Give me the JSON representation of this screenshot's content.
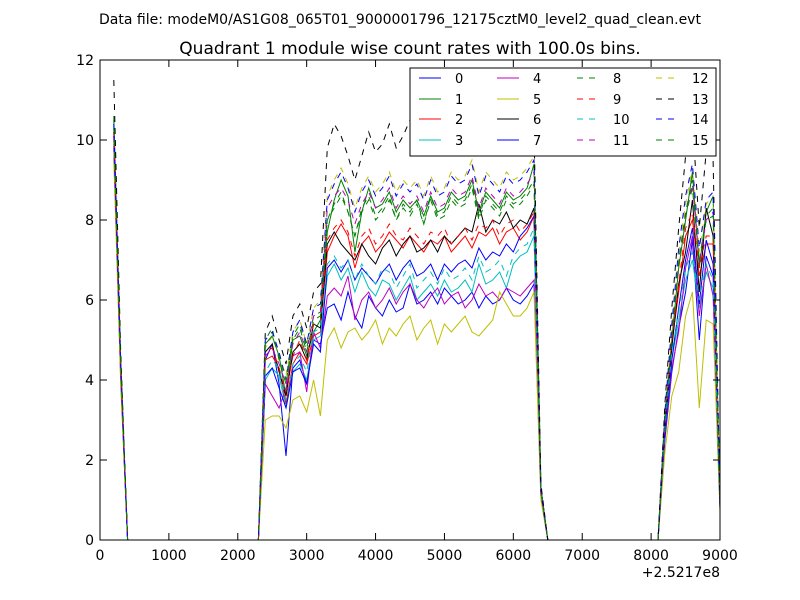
{
  "suptitle": "Data file: modeM0/AS1G08_065T01_9000001796_12175cztM0_level2_quad_clean.evt",
  "chart_data": {
    "type": "line",
    "title": "Quadrant 1 module wise count rates with 100.0s bins.",
    "xlabel": "",
    "ylabel": "",
    "x_offset_label": "+2.5217e8",
    "xlim": [
      0,
      9000
    ],
    "ylim": [
      0,
      12
    ],
    "xticks": [
      0,
      1000,
      2000,
      3000,
      4000,
      5000,
      6000,
      7000,
      8000,
      9000
    ],
    "yticks": [
      0,
      2,
      4,
      6,
      8,
      10,
      12
    ],
    "grid": false,
    "legend": {
      "position": "top-right",
      "columns": 4
    },
    "segments": [
      {
        "name": "start",
        "x_start": 200,
        "step": 100,
        "count": 3
      },
      {
        "name": "block1",
        "x_start": 2300,
        "step": 100,
        "count": 43
      },
      {
        "name": "block2",
        "x_start": 8100,
        "step": 100,
        "count": 10
      }
    ],
    "series": [
      {
        "name": "0",
        "color": "#0000ff",
        "dash": false,
        "start": [
          9.8,
          4.1,
          0.0
        ],
        "block1": [
          0.0,
          4.5,
          4.9,
          3.9,
          2.1,
          4.3,
          4.5,
          3.9,
          5.0,
          4.9,
          5.8,
          5.9,
          5.5,
          6.2,
          5.6,
          5.3,
          6.1,
          5.8,
          5.6,
          6.0,
          5.7,
          5.8,
          6.4,
          5.9,
          6.0,
          6.2,
          5.9,
          6.3,
          6.1,
          5.9,
          6.0,
          6.2,
          5.8,
          6.1,
          5.9,
          6.0,
          6.3,
          6.0,
          5.9,
          6.1,
          6.4,
          1.2,
          0.0
        ],
        "block2": [
          0.0,
          2.5,
          4.2,
          5.3,
          6.2,
          7.5,
          5.0,
          7.1,
          6.6,
          0.8
        ]
      },
      {
        "name": "1",
        "color": "#008000",
        "dash": false,
        "start": [
          10.6,
          4.5,
          0.0
        ],
        "block1": [
          0.0,
          4.9,
          5.1,
          4.6,
          3.6,
          5.0,
          5.1,
          4.6,
          5.2,
          5.5,
          7.7,
          8.5,
          9.0,
          8.6,
          7.2,
          8.2,
          8.8,
          8.3,
          8.4,
          8.7,
          8.2,
          8.5,
          8.3,
          8.5,
          8.1,
          8.6,
          8.2,
          8.3,
          8.7,
          8.5,
          8.6,
          9.0,
          8.2,
          8.7,
          8.5,
          8.3,
          8.7,
          8.5,
          8.6,
          8.8,
          9.4,
          1.3,
          0.0
        ],
        "block2": [
          0.0,
          3.0,
          5.0,
          6.8,
          8.0,
          9.2,
          6.8,
          8.2,
          8.6,
          0.9
        ]
      },
      {
        "name": "2",
        "color": "#ff0000",
        "dash": false,
        "start": [
          10.1,
          4.3,
          0.0
        ],
        "block1": [
          0.0,
          4.5,
          4.6,
          4.3,
          3.4,
          4.4,
          4.7,
          4.4,
          5.1,
          5.2,
          7.2,
          7.6,
          7.9,
          7.6,
          6.8,
          7.4,
          7.6,
          7.2,
          7.4,
          7.7,
          7.5,
          7.3,
          7.6,
          7.4,
          7.2,
          7.5,
          7.4,
          7.6,
          7.2,
          7.4,
          7.6,
          7.3,
          7.7,
          7.6,
          7.8,
          7.4,
          7.7,
          7.8,
          7.5,
          7.7,
          8.1,
          1.2,
          0.0
        ],
        "block2": [
          0.0,
          2.8,
          4.9,
          6.2,
          7.6,
          8.0,
          6.6,
          7.4,
          7.4,
          0.9
        ]
      },
      {
        "name": "3",
        "color": "#00bfbf",
        "dash": false,
        "start": [
          10.3,
          4.2,
          0.0
        ],
        "block1": [
          0.0,
          4.0,
          4.3,
          4.1,
          3.3,
          4.2,
          4.4,
          4.0,
          5.0,
          5.1,
          6.6,
          6.9,
          6.5,
          6.8,
          6.2,
          6.7,
          6.3,
          6.1,
          6.5,
          6.4,
          6.0,
          6.3,
          6.6,
          6.0,
          6.2,
          6.4,
          6.1,
          6.5,
          6.2,
          6.3,
          6.5,
          6.2,
          6.9,
          6.4,
          6.5,
          6.7,
          6.3,
          6.9,
          7.1,
          7.2,
          7.6,
          1.2,
          0.0
        ],
        "block2": [
          0.0,
          2.7,
          4.5,
          5.5,
          6.5,
          7.0,
          5.8,
          6.7,
          6.3,
          0.8
        ]
      },
      {
        "name": "4",
        "color": "#bf00bf",
        "dash": false,
        "start": [
          10.0,
          4.0,
          0.0
        ],
        "block1": [
          0.0,
          3.9,
          3.6,
          3.3,
          3.8,
          4.6,
          4.7,
          3.7,
          5.2,
          4.8,
          6.1,
          6.3,
          6.1,
          6.6,
          5.5,
          6.0,
          6.2,
          5.8,
          6.0,
          6.3,
          5.9,
          6.2,
          6.4,
          6.0,
          5.8,
          6.1,
          6.3,
          5.9,
          6.1,
          6.2,
          5.8,
          6.0,
          6.4,
          6.1,
          6.2,
          6.0,
          6.3,
          6.2,
          6.1,
          6.3,
          6.5,
          1.1,
          0.0
        ],
        "block2": [
          0.0,
          2.6,
          4.3,
          5.2,
          6.8,
          7.6,
          5.6,
          6.9,
          6.1,
          0.8
        ]
      },
      {
        "name": "5",
        "color": "#bfbf00",
        "dash": false,
        "start": [
          9.5,
          3.9,
          0.0
        ],
        "block1": [
          0.0,
          3.0,
          3.1,
          3.1,
          2.8,
          3.5,
          3.6,
          3.2,
          4.0,
          3.1,
          5.0,
          5.3,
          4.8,
          5.2,
          5.3,
          5.0,
          5.2,
          5.5,
          4.9,
          5.3,
          5.1,
          5.4,
          5.6,
          5.0,
          5.3,
          5.5,
          4.9,
          5.4,
          5.2,
          5.4,
          5.6,
          5.2,
          5.1,
          5.3,
          5.5,
          6.2,
          5.9,
          5.6,
          5.6,
          5.8,
          6.2,
          1.0,
          0.0
        ],
        "block2": [
          0.0,
          2.2,
          3.6,
          4.2,
          5.6,
          6.2,
          3.3,
          5.5,
          5.4,
          0.7
        ]
      },
      {
        "name": "6",
        "color": "#000000",
        "dash": false,
        "start": [
          10.2,
          4.3,
          0.0
        ],
        "block1": [
          0.0,
          4.7,
          4.9,
          4.2,
          3.6,
          4.7,
          4.9,
          4.5,
          5.4,
          5.3,
          7.4,
          7.7,
          7.4,
          7.2,
          7.0,
          7.4,
          7.1,
          6.9,
          7.3,
          7.5,
          7.1,
          7.4,
          7.6,
          7.2,
          7.3,
          7.5,
          7.2,
          7.6,
          7.4,
          7.6,
          7.8,
          7.7,
          8.4,
          7.7,
          8.0,
          7.9,
          8.2,
          7.8,
          8.0,
          7.9,
          8.3,
          1.2,
          0.0
        ],
        "block2": [
          0.0,
          2.9,
          4.8,
          6.4,
          7.2,
          8.5,
          6.2,
          8.3,
          7.6,
          0.9
        ]
      },
      {
        "name": "7",
        "color": "#0000ff",
        "dash": false,
        "start": [
          9.9,
          4.2,
          0.0
        ],
        "block1": [
          0.0,
          4.1,
          4.3,
          3.8,
          3.3,
          4.2,
          4.3,
          3.9,
          4.9,
          4.7,
          6.8,
          7.0,
          6.7,
          7.0,
          6.5,
          6.8,
          6.6,
          6.4,
          6.7,
          6.9,
          6.5,
          6.8,
          7.0,
          6.6,
          6.7,
          6.9,
          6.5,
          6.9,
          6.7,
          6.9,
          7.0,
          6.8,
          7.3,
          7.0,
          7.2,
          7.1,
          7.4,
          7.2,
          7.6,
          7.8,
          8.1,
          1.2,
          0.0
        ],
        "block2": [
          0.0,
          2.7,
          4.5,
          5.8,
          7.0,
          7.8,
          5.9,
          7.5,
          6.9,
          0.8
        ]
      },
      {
        "name": "8",
        "color": "#008000",
        "dash": true,
        "start": [
          10.5,
          4.5,
          0.0
        ],
        "block1": [
          0.0,
          5.0,
          5.3,
          4.5,
          3.9,
          5.1,
          5.4,
          4.8,
          5.6,
          5.7,
          8.0,
          8.4,
          8.7,
          8.2,
          7.6,
          8.3,
          8.6,
          8.1,
          8.3,
          8.6,
          8.0,
          8.4,
          8.2,
          8.5,
          7.9,
          8.6,
          8.1,
          8.2,
          8.6,
          8.4,
          8.5,
          8.9,
          8.1,
          8.6,
          8.4,
          8.2,
          8.6,
          8.4,
          8.5,
          8.7,
          9.0,
          1.3,
          0.0
        ],
        "block2": [
          0.0,
          3.1,
          5.2,
          7.0,
          8.2,
          9.0,
          7.0,
          8.1,
          8.3,
          0.9
        ]
      },
      {
        "name": "9",
        "color": "#ff0000",
        "dash": true,
        "start": [
          10.2,
          4.3,
          0.0
        ],
        "block1": [
          0.0,
          4.7,
          4.8,
          4.3,
          3.7,
          4.6,
          5.0,
          4.5,
          5.4,
          5.4,
          7.5,
          7.8,
          8.0,
          7.7,
          7.1,
          7.6,
          7.8,
          7.4,
          7.6,
          7.9,
          7.6,
          7.5,
          7.8,
          7.6,
          7.4,
          7.7,
          7.6,
          7.8,
          7.4,
          7.6,
          7.8,
          7.5,
          7.9,
          7.8,
          8.0,
          7.6,
          7.9,
          8.0,
          7.7,
          7.9,
          8.2,
          1.2,
          0.0
        ],
        "block2": [
          0.0,
          2.9,
          5.0,
          6.4,
          7.8,
          8.2,
          6.8,
          7.6,
          7.6,
          0.9
        ]
      },
      {
        "name": "10",
        "color": "#00bfbf",
        "dash": true,
        "start": [
          10.4,
          4.3,
          0.0
        ],
        "block1": [
          0.0,
          4.2,
          4.5,
          4.3,
          3.5,
          4.4,
          4.6,
          4.2,
          5.2,
          5.3,
          6.9,
          7.1,
          6.8,
          7.0,
          6.5,
          6.9,
          6.6,
          6.4,
          6.8,
          6.7,
          6.3,
          6.6,
          6.9,
          6.3,
          6.5,
          6.7,
          6.4,
          6.8,
          6.5,
          6.6,
          6.8,
          6.5,
          7.1,
          6.7,
          6.8,
          7.0,
          6.6,
          7.1,
          7.3,
          7.4,
          7.8,
          1.2,
          0.0
        ],
        "block2": [
          0.0,
          2.8,
          4.7,
          5.7,
          6.8,
          7.2,
          6.0,
          6.9,
          6.5,
          0.8
        ]
      },
      {
        "name": "11",
        "color": "#bf00bf",
        "dash": true,
        "start": [
          10.1,
          4.1,
          0.0
        ],
        "block1": [
          0.0,
          4.6,
          4.8,
          4.4,
          3.9,
          4.9,
          5.2,
          4.7,
          5.6,
          5.7,
          8.3,
          8.6,
          8.8,
          8.5,
          7.9,
          8.4,
          8.7,
          8.3,
          8.5,
          8.8,
          8.3,
          8.6,
          8.4,
          8.6,
          8.2,
          8.7,
          8.3,
          8.4,
          8.8,
          8.6,
          8.7,
          9.1,
          8.3,
          8.8,
          8.6,
          8.4,
          8.8,
          8.6,
          8.7,
          8.9,
          9.2,
          1.3,
          0.0
        ],
        "block2": [
          0.0,
          3.0,
          5.1,
          6.9,
          8.1,
          8.9,
          6.9,
          8.0,
          8.2,
          0.9
        ]
      },
      {
        "name": "12",
        "color": "#bfbf00",
        "dash": true,
        "start": [
          10.0,
          4.0,
          0.0
        ],
        "block1": [
          0.0,
          4.8,
          5.1,
          4.6,
          4.1,
          5.2,
          5.5,
          4.9,
          5.8,
          6.0,
          8.6,
          9.0,
          9.3,
          8.9,
          8.3,
          8.8,
          9.1,
          8.7,
          8.9,
          9.2,
          8.7,
          9.0,
          8.8,
          9.0,
          8.6,
          9.1,
          8.7,
          8.8,
          9.2,
          9.0,
          9.1,
          9.5,
          8.7,
          9.2,
          9.0,
          8.8,
          9.2,
          9.0,
          9.1,
          9.3,
          9.6,
          1.3,
          0.0
        ],
        "block2": [
          0.0,
          3.1,
          5.3,
          7.2,
          8.4,
          9.3,
          7.2,
          8.4,
          8.6,
          0.9
        ]
      },
      {
        "name": "13",
        "color": "#000000",
        "dash": true,
        "start": [
          11.5,
          4.7,
          0.0
        ],
        "block1": [
          0.0,
          5.2,
          5.6,
          5.0,
          4.4,
          5.6,
          5.9,
          5.3,
          6.2,
          6.4,
          9.8,
          10.4,
          10.1,
          9.6,
          9.0,
          9.6,
          10.2,
          9.7,
          9.9,
          10.4,
          9.8,
          10.1,
          10.5,
          9.9,
          10.0,
          10.3,
          9.9,
          10.2,
          9.9,
          10.1,
          10.3,
          10.0,
          9.8,
          10.1,
          9.9,
          10.0,
          10.2,
          9.9,
          10.1,
          10.0,
          10.3,
          1.4,
          0.0
        ],
        "block2": [
          0.0,
          3.4,
          5.8,
          7.8,
          9.6,
          10.5,
          7.8,
          9.7,
          9.5,
          1.0
        ]
      },
      {
        "name": "14",
        "color": "#0000ff",
        "dash": true,
        "start": [
          10.4,
          4.4,
          0.0
        ],
        "block1": [
          0.0,
          5.0,
          5.2,
          4.7,
          4.0,
          5.2,
          5.5,
          4.9,
          5.8,
          5.9,
          8.5,
          8.9,
          9.2,
          8.8,
          8.2,
          8.7,
          9.0,
          8.6,
          8.8,
          9.1,
          8.6,
          8.9,
          8.7,
          8.9,
          8.5,
          9.0,
          8.6,
          8.7,
          9.1,
          8.9,
          9.0,
          9.4,
          8.6,
          9.1,
          8.9,
          8.7,
          9.1,
          8.9,
          9.0,
          9.2,
          9.5,
          1.3,
          0.0
        ],
        "block2": [
          0.0,
          3.2,
          5.4,
          7.3,
          8.6,
          9.4,
          7.3,
          8.5,
          8.7,
          0.9
        ]
      },
      {
        "name": "15",
        "color": "#008000",
        "dash": true,
        "start": [
          10.3,
          4.3,
          0.0
        ],
        "block1": [
          0.0,
          4.9,
          5.1,
          4.6,
          4.0,
          5.0,
          5.3,
          4.7,
          5.5,
          5.6,
          8.0,
          8.3,
          8.6,
          8.2,
          7.6,
          8.2,
          8.5,
          8.0,
          8.2,
          8.5,
          8.0,
          8.3,
          8.1,
          8.4,
          7.9,
          8.5,
          8.0,
          8.1,
          8.5,
          8.3,
          8.4,
          8.8,
          8.0,
          8.5,
          8.3,
          8.1,
          8.5,
          8.3,
          8.4,
          8.6,
          8.9,
          1.3,
          0.0
        ],
        "block2": [
          0.0,
          3.0,
          5.1,
          6.9,
          8.1,
          8.8,
          6.9,
          8.0,
          8.1,
          0.9
        ]
      }
    ]
  }
}
